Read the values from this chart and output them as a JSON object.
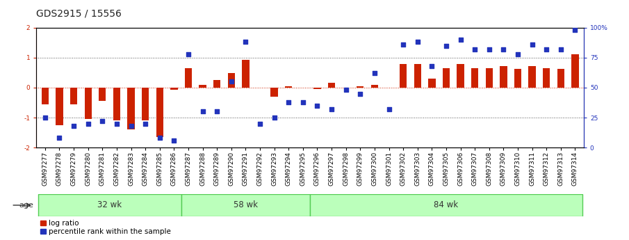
{
  "title": "GDS2915 / 15556",
  "samples": [
    "GSM97277",
    "GSM97278",
    "GSM97279",
    "GSM97280",
    "GSM97281",
    "GSM97282",
    "GSM97283",
    "GSM97284",
    "GSM97285",
    "GSM97286",
    "GSM97287",
    "GSM97288",
    "GSM97289",
    "GSM97290",
    "GSM97291",
    "GSM97292",
    "GSM97293",
    "GSM97294",
    "GSM97295",
    "GSM97296",
    "GSM97297",
    "GSM97298",
    "GSM97299",
    "GSM97300",
    "GSM97301",
    "GSM97302",
    "GSM97303",
    "GSM97304",
    "GSM97305",
    "GSM97306",
    "GSM97307",
    "GSM97308",
    "GSM97309",
    "GSM97310",
    "GSM97311",
    "GSM97312",
    "GSM97313",
    "GSM97314"
  ],
  "log_ratio": [
    -0.55,
    -1.25,
    -0.55,
    -1.05,
    -0.45,
    -1.1,
    -1.4,
    -1.1,
    -1.65,
    -0.08,
    0.65,
    0.1,
    0.25,
    0.48,
    0.93,
    0.0,
    -0.3,
    0.05,
    0.0,
    -0.05,
    0.15,
    0.0,
    0.05,
    0.08,
    0.0,
    0.78,
    0.78,
    0.3,
    0.65,
    0.78,
    0.65,
    0.65,
    0.72,
    0.62,
    0.72,
    0.65,
    0.62,
    1.1
  ],
  "percentile": [
    25,
    8,
    18,
    20,
    22,
    20,
    18,
    20,
    8,
    6,
    78,
    30,
    30,
    55,
    88,
    20,
    25,
    38,
    38,
    35,
    32,
    48,
    45,
    62,
    32,
    86,
    88,
    68,
    85,
    90,
    82,
    82,
    82,
    78,
    86,
    82,
    82,
    98
  ],
  "groups": [
    {
      "label": "32 wk",
      "start": 0,
      "end": 9
    },
    {
      "label": "58 wk",
      "start": 10,
      "end": 18
    },
    {
      "label": "84 wk",
      "start": 19,
      "end": 37
    }
  ],
  "bar_color": "#cc2200",
  "dot_color": "#2233bb",
  "ylim": [
    -2,
    2
  ],
  "y2lim": [
    0,
    100
  ],
  "group_bg_color": "#bbffbb",
  "group_border_color": "#55cc55",
  "legend_items": [
    "log ratio",
    "percentile rank within the sample"
  ],
  "title_fontsize": 10,
  "tick_fontsize": 6.5,
  "group_fontsize": 8.5
}
